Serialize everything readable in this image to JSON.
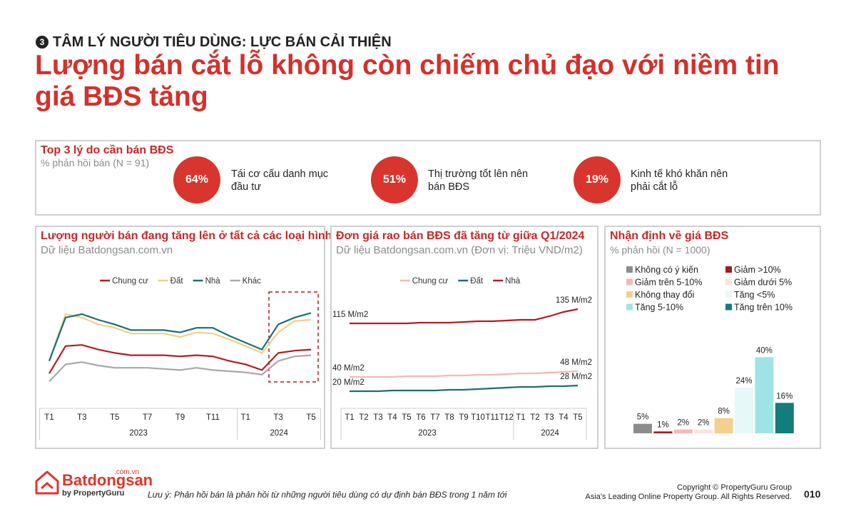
{
  "header": {
    "section_number": "3",
    "kicker": "TÂM LÝ NGƯỜI TIÊU DÙNG: LỰC BÁN CẢI THIỆN",
    "title": "Lượng bán cắt lỗ không còn chiếm chủ đạo với niềm tin giá BĐS tăng"
  },
  "reasons": {
    "title": "Top 3 lý do cần bán BĐS",
    "subtitle": "% phản hồi bán (N = 91)",
    "items": [
      {
        "value": "64%",
        "text": "Tái cơ cấu danh mục đầu tư"
      },
      {
        "value": "51%",
        "text": "Thị trường tốt lên nên bán BĐS"
      },
      {
        "value": "19%",
        "text": "Kinh tế khó khăn nên phải cắt lỗ"
      }
    ]
  },
  "chart_data": [
    {
      "type": "line",
      "title": "Lượng người bán đang tăng lên ở tất cả các loại hình",
      "subtitle": "Dữ liệu Batdongsan.com.vn",
      "categories": [
        "T1",
        null,
        "T3",
        null,
        "T5",
        null,
        "T7",
        null,
        "T9",
        null,
        "T11",
        null,
        "T1",
        null,
        "T3",
        null,
        "T5"
      ],
      "years": [
        "2023",
        "2024"
      ],
      "ylim": [
        0,
        100
      ],
      "series": [
        {
          "name": "Chung cư",
          "color": "#b01e23",
          "values": [
            23,
            47,
            48,
            44,
            41,
            39,
            39,
            39,
            38,
            39,
            38,
            34,
            31,
            26,
            41,
            43,
            44
          ]
        },
        {
          "name": "Đất",
          "color": "#f2cf85",
          "values": [
            34,
            75,
            72,
            66,
            63,
            58,
            58,
            58,
            55,
            59,
            58,
            53,
            47,
            41,
            59,
            69,
            70
          ]
        },
        {
          "name": "Nhà",
          "color": "#1d6f72",
          "values": [
            34,
            72,
            75,
            70,
            66,
            61,
            61,
            61,
            59,
            63,
            63,
            56,
            50,
            44,
            66,
            72,
            76
          ]
        },
        {
          "name": "Khác",
          "color": "#a8a8a8",
          "values": [
            16,
            31,
            33,
            30,
            28,
            28,
            28,
            27,
            26,
            28,
            26,
            25,
            24,
            22,
            34,
            38,
            39
          ]
        }
      ]
    },
    {
      "type": "line",
      "title": "Đơn giá rao bán BĐS đã tăng từ giữa Q1/2024",
      "subtitle": "Dữ liệu Batdongsan.com.vn (Đơn vị: Triệu VND/m2)",
      "categories": [
        "T1",
        "T2",
        "T3",
        "T4",
        "T5",
        "T6",
        "T7",
        "T8",
        "T9",
        "T10",
        "T11",
        "T12",
        "T1",
        "T2",
        "T3",
        "T4",
        "T5"
      ],
      "years": [
        "2023",
        "2024"
      ],
      "ylim": [
        0,
        160
      ],
      "series": [
        {
          "name": "Chung cư",
          "color": "#f4b8b3",
          "values": [
            40,
            40,
            40,
            40,
            41,
            41,
            41,
            42,
            42,
            43,
            43,
            44,
            45,
            45,
            46,
            47,
            48
          ],
          "value_labels": [
            "40 M/m2",
            null,
            null,
            null,
            null,
            null,
            null,
            null,
            null,
            null,
            null,
            null,
            null,
            null,
            null,
            null,
            "48 M/m2"
          ]
        },
        {
          "name": "Đất",
          "color": "#1d6f72",
          "values": [
            20,
            20,
            20,
            21,
            21,
            21,
            21,
            22,
            22,
            23,
            24,
            25,
            26,
            26,
            27,
            27,
            28
          ],
          "value_labels": [
            "20 M/m2",
            null,
            null,
            null,
            null,
            null,
            null,
            null,
            null,
            null,
            null,
            null,
            null,
            null,
            null,
            null,
            "28 M/m2"
          ]
        },
        {
          "name": "Nhà",
          "color": "#b01e23",
          "values": [
            115,
            115,
            115,
            115,
            115,
            116,
            116,
            116,
            117,
            118,
            118,
            119,
            120,
            120,
            125,
            131,
            135
          ],
          "value_labels": [
            "115 M/m2",
            null,
            null,
            null,
            null,
            null,
            null,
            null,
            null,
            null,
            null,
            null,
            null,
            null,
            null,
            null,
            "135 M/m2"
          ]
        }
      ]
    },
    {
      "type": "bar",
      "title": "Nhận định về giá BĐS",
      "subtitle": "% phản hồi (N = 1000)",
      "categories": [
        "Không có ý kiến",
        "Giảm >10%",
        "Giảm trên 5-10%",
        "Giảm dưới 5%",
        "Không thay đổi",
        "Tăng <5%",
        "Tăng 5-10%",
        "Tăng trên 10%"
      ],
      "colors": [
        "#8c8c8c",
        "#a31a1a",
        "#f4b9b9",
        "#fde2e2",
        "#f5cf8e",
        "#e6f8f8",
        "#9fe3e6",
        "#137c7c"
      ],
      "values": [
        5,
        1,
        2,
        2,
        8,
        24,
        40,
        16
      ],
      "value_labels": [
        "5%",
        "1%",
        "2%",
        "2%",
        "8%",
        "24%",
        "40%",
        "16%"
      ],
      "ylim": [
        0,
        42
      ]
    }
  ],
  "footer": {
    "logo": "Batdongsan",
    "logo_domain": ".com.vn",
    "logo_by": "by PropertyGuru",
    "note": "Lưu ý: Phản hồi bán là phản hồi từ những người tiêu dùng có dự định bán BĐS trong 1 năm tới",
    "copyright": "Copyright © PropertyGuru Group",
    "rights": "Asia's Leading Online Property Group. All Rights Reserved.",
    "page": "010"
  }
}
